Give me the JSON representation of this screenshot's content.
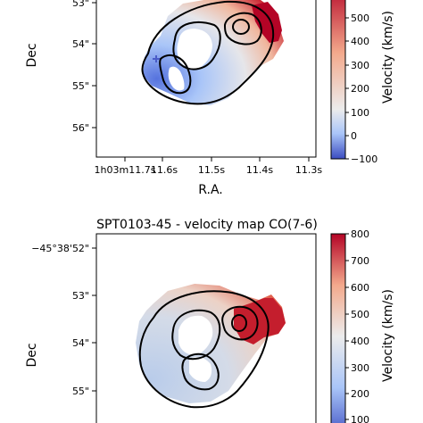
{
  "chart_data": [
    {
      "type": "heatmap",
      "title": "",
      "xlabel": "R.A.",
      "ylabel": "Dec",
      "x_ticks": [
        "1h03m11.7s",
        "11.6s",
        "11.5s",
        "11.4s",
        "11.3s"
      ],
      "y_ticks": [
        "53\"",
        "54\"",
        "55\"",
        "56\""
      ],
      "colorbar": {
        "label": "Velocity (km/s)",
        "ticks": [
          "500",
          "400",
          "300",
          "200",
          "100",
          "0",
          "−100"
        ],
        "range": [
          -100,
          600
        ]
      },
      "colormap": [
        "#3b4cc0",
        "#a9c5f8",
        "#ececec",
        "#f3a98c",
        "#b40426"
      ]
    },
    {
      "type": "heatmap",
      "title": "SPT0103-45 - velocity map CO(7-6)",
      "xlabel": "",
      "ylabel": "Dec",
      "x_ticks": [],
      "y_ticks": [
        "−45°38'52\"",
        "53\"",
        "54\"",
        "55\""
      ],
      "colorbar": {
        "label": "Velocity (km/s)",
        "ticks": [
          "800",
          "700",
          "600",
          "500",
          "400",
          "300",
          "200",
          "100"
        ],
        "range": [
          100,
          800
        ]
      },
      "colormap": [
        "#3b4cc0",
        "#a9c5f8",
        "#ececec",
        "#f3a98c",
        "#b40426"
      ]
    }
  ]
}
